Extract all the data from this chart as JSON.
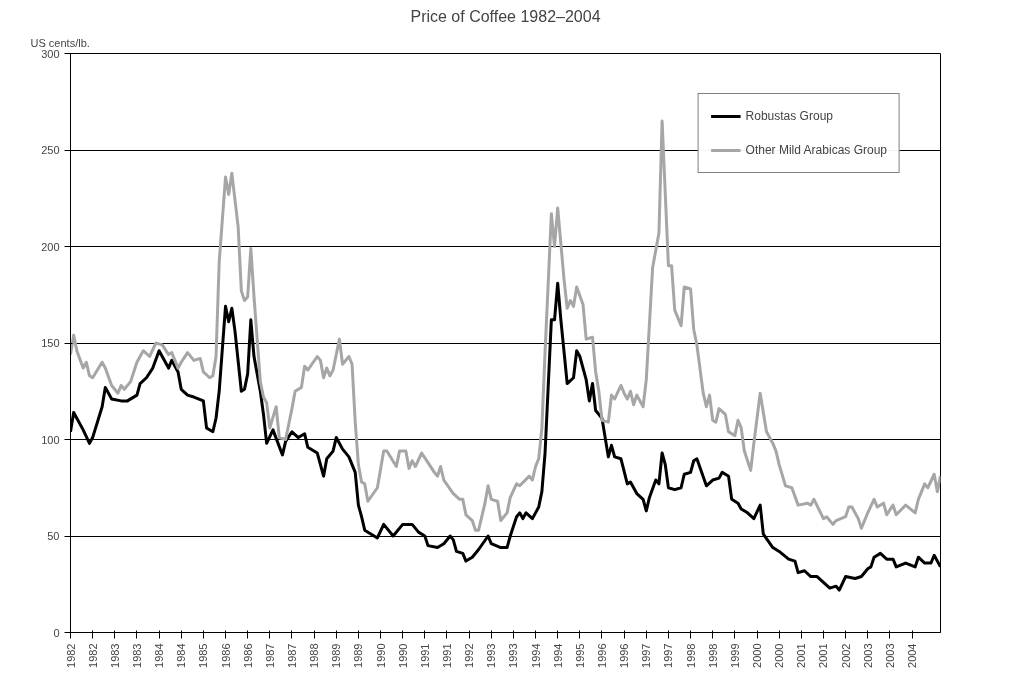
{
  "chart_data": {
    "type": "line",
    "title": "Price of Coffee 1982–2004",
    "ylabel": "US cents/lb.",
    "ylim": [
      0,
      300
    ],
    "yticks": [
      0,
      50,
      100,
      150,
      200,
      250,
      300
    ],
    "xlim": [
      "1982-01",
      "2004-12"
    ],
    "xticks": [
      {
        "value": "1982-01",
        "label": "1982"
      },
      {
        "value": "1982-08",
        "label": "1982"
      },
      {
        "value": "1983-03",
        "label": "1983"
      },
      {
        "value": "1983-10",
        "label": "1983"
      },
      {
        "value": "1984-05",
        "label": "1984"
      },
      {
        "value": "1984-12",
        "label": "1984"
      },
      {
        "value": "1985-07",
        "label": "1985"
      },
      {
        "value": "1986-02",
        "label": "1986"
      },
      {
        "value": "1986-09",
        "label": "1986"
      },
      {
        "value": "1987-04",
        "label": "1987"
      },
      {
        "value": "1987-11",
        "label": "1987"
      },
      {
        "value": "1988-06",
        "label": "1988"
      },
      {
        "value": "1989-01",
        "label": "1989"
      },
      {
        "value": "1989-08",
        "label": "1989"
      },
      {
        "value": "1990-03",
        "label": "1990"
      },
      {
        "value": "1990-10",
        "label": "1990"
      },
      {
        "value": "1991-05",
        "label": "1991"
      },
      {
        "value": "1991-12",
        "label": "1991"
      },
      {
        "value": "1992-07",
        "label": "1992"
      },
      {
        "value": "1993-02",
        "label": "1993"
      },
      {
        "value": "1993-09",
        "label": "1993"
      },
      {
        "value": "1994-04",
        "label": "1994"
      },
      {
        "value": "1994-11",
        "label": "1994"
      },
      {
        "value": "1995-06",
        "label": "1995"
      },
      {
        "value": "1996-01",
        "label": "1996"
      },
      {
        "value": "1996-08",
        "label": "1996"
      },
      {
        "value": "1997-03",
        "label": "1997"
      },
      {
        "value": "1997-10",
        "label": "1997"
      },
      {
        "value": "1998-05",
        "label": "1998"
      },
      {
        "value": "1998-12",
        "label": "1998"
      },
      {
        "value": "1999-07",
        "label": "1999"
      },
      {
        "value": "2000-02",
        "label": "2000"
      },
      {
        "value": "2000-09",
        "label": "2000"
      },
      {
        "value": "2001-04",
        "label": "2001"
      },
      {
        "value": "2001-11",
        "label": "2001"
      },
      {
        "value": "2002-06",
        "label": "2002"
      },
      {
        "value": "2003-01",
        "label": "2003"
      },
      {
        "value": "2003-08",
        "label": "2003"
      },
      {
        "value": "2004-03",
        "label": "2004"
      }
    ],
    "grid": "y",
    "legend": "top right",
    "marker": "none",
    "line_style": "solid",
    "series": [
      {
        "name": "Robustas Group",
        "color": "#000000",
        "x": [
          "1982-01",
          "1982-02",
          "1982-03",
          "1982-05",
          "1982-07",
          "1982-08",
          "1982-11",
          "1982-12",
          "1983-02",
          "1983-05",
          "1983-07",
          "1983-10",
          "1983-11",
          "1984-01",
          "1984-03",
          "1984-05",
          "1984-08",
          "1984-09",
          "1984-11",
          "1984-12",
          "1985-02",
          "1985-04",
          "1985-07",
          "1985-08",
          "1985-10",
          "1985-11",
          "1985-12",
          "1986-02",
          "1986-03",
          "1986-04",
          "1986-05",
          "1986-07",
          "1986-08",
          "1986-09",
          "1986-10",
          "1986-11",
          "1987-01",
          "1987-02",
          "1987-03",
          "1987-05",
          "1987-08",
          "1987-09",
          "1987-11",
          "1988-01",
          "1988-03",
          "1988-04",
          "1988-07",
          "1988-09",
          "1988-10",
          "1988-12",
          "1989-01",
          "1989-03",
          "1989-05",
          "1989-07",
          "1989-08",
          "1989-09",
          "1989-10",
          "1990-02",
          "1990-04",
          "1990-07",
          "1990-10",
          "1991-01",
          "1991-03",
          "1991-05",
          "1991-06",
          "1991-09",
          "1991-11",
          "1992-01",
          "1992-02",
          "1992-03",
          "1992-05",
          "1992-06",
          "1992-08",
          "1992-10",
          "1993-01",
          "1993-02",
          "1993-05",
          "1993-07",
          "1993-08",
          "1993-10",
          "1993-11",
          "1993-12",
          "1994-01",
          "1994-03",
          "1994-05",
          "1994-06",
          "1994-07",
          "1994-09",
          "1994-10",
          "1994-11",
          "1994-12",
          "1995-02",
          "1995-04",
          "1995-05",
          "1995-06",
          "1995-08",
          "1995-09",
          "1995-10",
          "1995-11",
          "1996-01",
          "1996-03",
          "1996-04",
          "1996-05",
          "1996-07",
          "1996-09",
          "1996-10",
          "1996-12",
          "1997-02",
          "1997-03",
          "1997-04",
          "1997-06",
          "1997-07",
          "1997-08",
          "1997-09",
          "1997-10",
          "1997-12",
          "1998-02",
          "1998-03",
          "1998-05",
          "1998-06",
          "1998-07",
          "1998-10",
          "1998-12",
          "1999-02",
          "1999-03",
          "1999-05",
          "1999-06",
          "1999-08",
          "1999-09",
          "1999-11",
          "2000-01",
          "2000-03",
          "2000-04",
          "2000-07",
          "2000-09",
          "2000-12",
          "2001-02",
          "2001-03",
          "2001-05",
          "2001-07",
          "2001-09",
          "2001-11",
          "2002-01",
          "2002-03",
          "2002-04",
          "2002-06",
          "2002-09",
          "2002-11",
          "2003-01",
          "2003-02",
          "2003-03",
          "2003-05",
          "2003-07",
          "2003-09",
          "2003-10",
          "2004-01",
          "2004-04",
          "2004-05",
          "2004-07",
          "2004-09",
          "2004-10",
          "2004-12"
        ],
        "values": [
          104,
          114,
          111,
          105,
          98,
          101,
          117,
          127,
          121,
          120,
          120,
          123,
          129,
          132,
          137,
          146,
          137,
          141,
          135,
          126,
          123,
          122,
          120,
          106,
          104,
          111,
          125,
          169,
          161,
          168,
          156,
          125,
          126,
          134,
          162,
          143,
          125,
          113,
          98,
          105,
          92,
          99,
          104,
          101,
          103,
          96,
          93,
          81,
          90,
          94,
          101,
          95,
          91,
          83,
          66,
          60,
          53,
          49,
          56,
          50,
          56,
          56,
          52,
          50,
          45,
          44,
          46,
          50,
          48,
          42,
          41,
          37,
          39,
          43,
          50,
          46,
          44,
          44,
          50,
          60,
          62,
          59,
          62,
          59,
          65,
          73,
          93,
          162,
          162,
          181,
          162,
          129,
          132,
          146,
          143,
          131,
          120,
          129,
          115,
          111,
          91,
          97,
          91,
          90,
          77,
          78,
          72,
          69,
          63,
          70,
          79,
          77,
          93,
          87,
          75,
          74,
          75,
          82,
          83,
          89,
          90,
          76,
          79,
          80,
          83,
          81,
          69,
          67,
          64,
          62,
          59,
          66,
          51,
          44,
          42,
          38,
          37,
          31,
          32,
          29,
          29,
          26,
          23,
          24,
          22,
          29,
          28,
          29,
          33,
          34,
          39,
          41,
          38,
          38,
          34,
          36,
          34,
          39,
          36,
          36,
          40,
          34
        ]
      },
      {
        "name": "Other Mild Arabicas Group",
        "color": "#a6a6a6",
        "x": [
          "1982-01",
          "1982-02",
          "1982-03",
          "1982-05",
          "1982-06",
          "1982-07",
          "1982-08",
          "1982-11",
          "1982-12",
          "1983-02",
          "1983-04",
          "1983-05",
          "1983-06",
          "1983-08",
          "1983-10",
          "1983-12",
          "1984-02",
          "1984-04",
          "1984-06",
          "1984-08",
          "1984-09",
          "1984-11",
          "1984-12",
          "1985-02",
          "1985-04",
          "1985-06",
          "1985-07",
          "1985-09",
          "1985-10",
          "1985-11",
          "1985-12",
          "1986-02",
          "1986-03",
          "1986-04",
          "1986-06",
          "1986-07",
          "1986-08",
          "1986-09",
          "1986-10",
          "1986-11",
          "1987-01",
          "1987-02",
          "1987-03",
          "1987-04",
          "1987-06",
          "1987-07",
          "1987-09",
          "1987-11",
          "1987-12",
          "1988-02",
          "1988-03",
          "1988-04",
          "1988-07",
          "1988-08",
          "1988-09",
          "1988-10",
          "1988-11",
          "1988-12",
          "1989-02",
          "1989-03",
          "1989-05",
          "1989-06",
          "1989-07",
          "1989-08",
          "1989-09",
          "1989-10",
          "1989-11",
          "1990-02",
          "1990-04",
          "1990-05",
          "1990-08",
          "1990-09",
          "1990-11",
          "1990-12",
          "1991-01",
          "1991-02",
          "1991-04",
          "1991-06",
          "1991-08",
          "1991-09",
          "1991-10",
          "1991-11",
          "1992-02",
          "1992-04",
          "1992-05",
          "1992-06",
          "1992-08",
          "1992-09",
          "1992-10",
          "1992-12",
          "1993-01",
          "1993-02",
          "1993-04",
          "1993-05",
          "1993-07",
          "1993-08",
          "1993-10",
          "1993-11",
          "1994-02",
          "1994-03",
          "1994-04",
          "1994-05",
          "1994-06",
          "1994-07",
          "1994-09",
          "1994-10",
          "1994-11",
          "1995-01",
          "1995-02",
          "1995-03",
          "1995-04",
          "1995-05",
          "1995-07",
          "1995-08",
          "1995-10",
          "1995-11",
          "1995-12",
          "1996-01",
          "1996-03",
          "1996-04",
          "1996-05",
          "1996-07",
          "1996-08",
          "1996-09",
          "1996-10",
          "1996-11",
          "1996-12",
          "1997-02",
          "1997-03",
          "1997-05",
          "1997-07",
          "1997-08",
          "1997-10",
          "1997-11",
          "1997-12",
          "1998-02",
          "1998-03",
          "1998-05",
          "1998-06",
          "1998-07",
          "1998-09",
          "1998-10",
          "1998-11",
          "1998-12",
          "1999-01",
          "1999-02",
          "1999-04",
          "1999-05",
          "1999-07",
          "1999-08",
          "1999-09",
          "1999-10",
          "1999-12",
          "2000-01",
          "2000-03",
          "2000-05",
          "2000-07",
          "2000-08",
          "2000-09",
          "2000-11",
          "2001-01",
          "2001-03",
          "2001-06",
          "2001-07",
          "2001-08",
          "2001-11",
          "2001-12",
          "2002-02",
          "2002-03",
          "2002-06",
          "2002-07",
          "2002-08",
          "2002-10",
          "2002-11",
          "2003-01",
          "2003-03",
          "2003-04",
          "2003-06",
          "2003-07",
          "2003-09",
          "2003-10",
          "2004-01",
          "2004-04",
          "2004-05",
          "2004-07",
          "2004-08",
          "2004-10",
          "2004-11",
          "2004-12"
        ],
        "values": [
          144,
          154,
          146,
          137,
          140,
          133,
          132,
          140,
          137,
          128,
          124,
          128,
          126,
          130,
          140,
          146,
          143,
          150,
          149,
          144,
          145,
          137,
          140,
          145,
          141,
          142,
          135,
          132,
          133,
          143,
          192,
          236,
          227,
          238,
          210,
          177,
          172,
          174,
          199,
          174,
          130,
          122,
          119,
          106,
          117,
          101,
          100,
          116,
          125,
          127,
          138,
          136,
          143,
          141,
          132,
          137,
          133,
          136,
          152,
          139,
          143,
          139,
          109,
          87,
          78,
          77,
          68,
          75,
          94,
          94,
          86,
          94,
          94,
          85,
          89,
          86,
          93,
          88,
          83,
          81,
          86,
          79,
          72,
          69,
          69,
          61,
          58,
          53,
          53,
          67,
          76,
          69,
          68,
          58,
          62,
          70,
          77,
          76,
          81,
          79,
          86,
          90,
          106,
          145,
          217,
          200,
          220,
          183,
          168,
          172,
          169,
          179,
          170,
          152,
          153,
          135,
          125,
          110,
          109,
          123,
          121,
          128,
          124,
          121,
          125,
          118,
          123,
          117,
          131,
          189,
          207,
          265,
          190,
          190,
          167,
          159,
          179,
          178,
          157,
          149,
          124,
          117,
          123,
          110,
          109,
          116,
          113,
          104,
          102,
          110,
          106,
          94,
          84,
          98,
          124,
          104,
          98,
          94,
          87,
          76,
          75,
          66,
          67,
          66,
          69,
          59,
          60,
          56,
          58,
          60,
          65,
          65,
          59,
          54,
          62,
          69,
          65,
          67,
          61,
          66,
          61,
          66,
          62,
          69,
          77,
          75,
          82,
          73,
          81
        ]
      }
    ]
  }
}
